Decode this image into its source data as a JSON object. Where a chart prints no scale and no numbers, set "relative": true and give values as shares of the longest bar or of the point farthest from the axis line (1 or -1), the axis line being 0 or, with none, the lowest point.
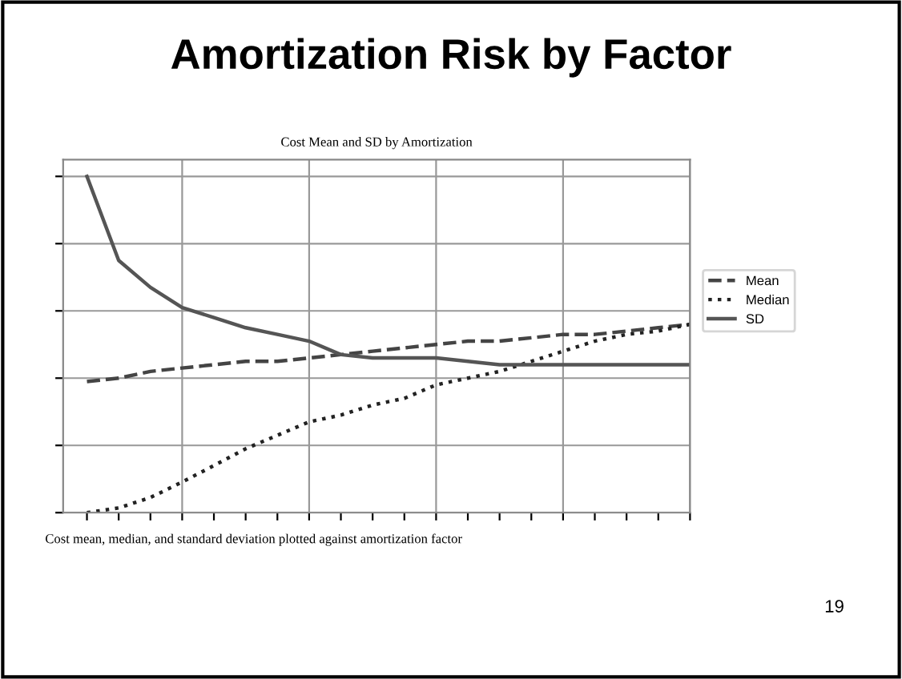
{
  "chart_data": {
    "type": "line",
    "title": "Amortization Risk by Factor",
    "subtitle": "Cost Mean and SD by Amortization",
    "annotations": [
      "Cost mean, median, and standard deviation plotted against amortization factor",
      "19"
    ],
    "relative": true,
    "grid": true,
    "legend": "right",
    "categories": [
      null,
      null,
      null,
      null,
      null,
      null,
      null,
      null,
      null,
      null,
      null,
      null,
      null,
      null,
      null,
      null,
      null,
      null,
      null,
      null
    ],
    "series": [
      {
        "name": "Mean",
        "color": "#444444",
        "line_style": "dashed",
        "values": [
          0.39,
          0.4,
          0.42,
          0.43,
          0.44,
          0.45,
          0.45,
          0.46,
          0.47,
          0.48,
          0.49,
          0.5,
          0.51,
          0.51,
          0.52,
          0.53,
          0.53,
          0.54,
          0.55,
          0.56
        ]
      },
      {
        "name": "Median",
        "color": "#222222",
        "line_style": "dotted",
        "values": [
          0.0,
          0.014,
          0.045,
          0.091,
          0.14,
          0.19,
          0.23,
          0.27,
          0.29,
          0.32,
          0.34,
          0.38,
          0.4,
          0.42,
          0.45,
          0.48,
          0.51,
          0.53,
          0.54,
          0.56
        ]
      },
      {
        "name": "SD",
        "color": "#555555",
        "line_style": "solid",
        "values": [
          1,
          0.75,
          0.67,
          0.61,
          0.58,
          0.55,
          0.53,
          0.51,
          0.47,
          0.46,
          0.46,
          0.46,
          0.45,
          0.44,
          0.44,
          0.44,
          0.44,
          0.44,
          0.44,
          0.44
        ]
      }
    ]
  }
}
